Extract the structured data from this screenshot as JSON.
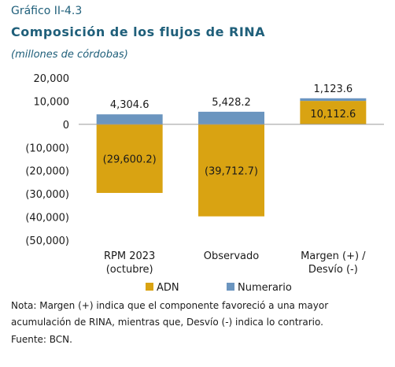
{
  "header": {
    "caption": "Gráfico II-4.3",
    "title": "Composición de los flujos de RINA",
    "subtitle": "(millones de córdobas)"
  },
  "chart_data": {
    "type": "bar",
    "stacked": true,
    "categories": [
      "RPM 2023\n(octubre)",
      "Observado",
      "Margen (+) /\nDesvío (-)"
    ],
    "series": [
      {
        "name": "ADN",
        "values": [
          -29600.2,
          -39712.7,
          10112.6
        ],
        "color": "#d9a312",
        "labels": [
          "(29,600.2)",
          "(39,712.7)",
          "10,112.6"
        ]
      },
      {
        "name": "Numerario",
        "values": [
          4304.6,
          5428.2,
          1123.6
        ],
        "color": "#6b95bf",
        "labels": [
          "4,304.6",
          "5,428.2",
          "1,123.6"
        ]
      }
    ],
    "ylim": [
      -50000,
      20000
    ],
    "yticks": [
      20000,
      10000,
      0,
      -10000,
      -20000,
      -30000,
      -40000,
      -50000
    ],
    "ytick_labels": [
      "20,000",
      "10,000",
      "0",
      "(10,000)",
      "(20,000)",
      "(30,000)",
      "(40,000)",
      "(50,000)"
    ],
    "legend_position": "bottom",
    "grid": false
  },
  "footer": {
    "note": "Nota: Margen (+) indica que el componente favoreció a una mayor acumulación de RINA, mientras que, Desvío (-) indica lo contrario.",
    "source": "Fuente: BCN."
  }
}
